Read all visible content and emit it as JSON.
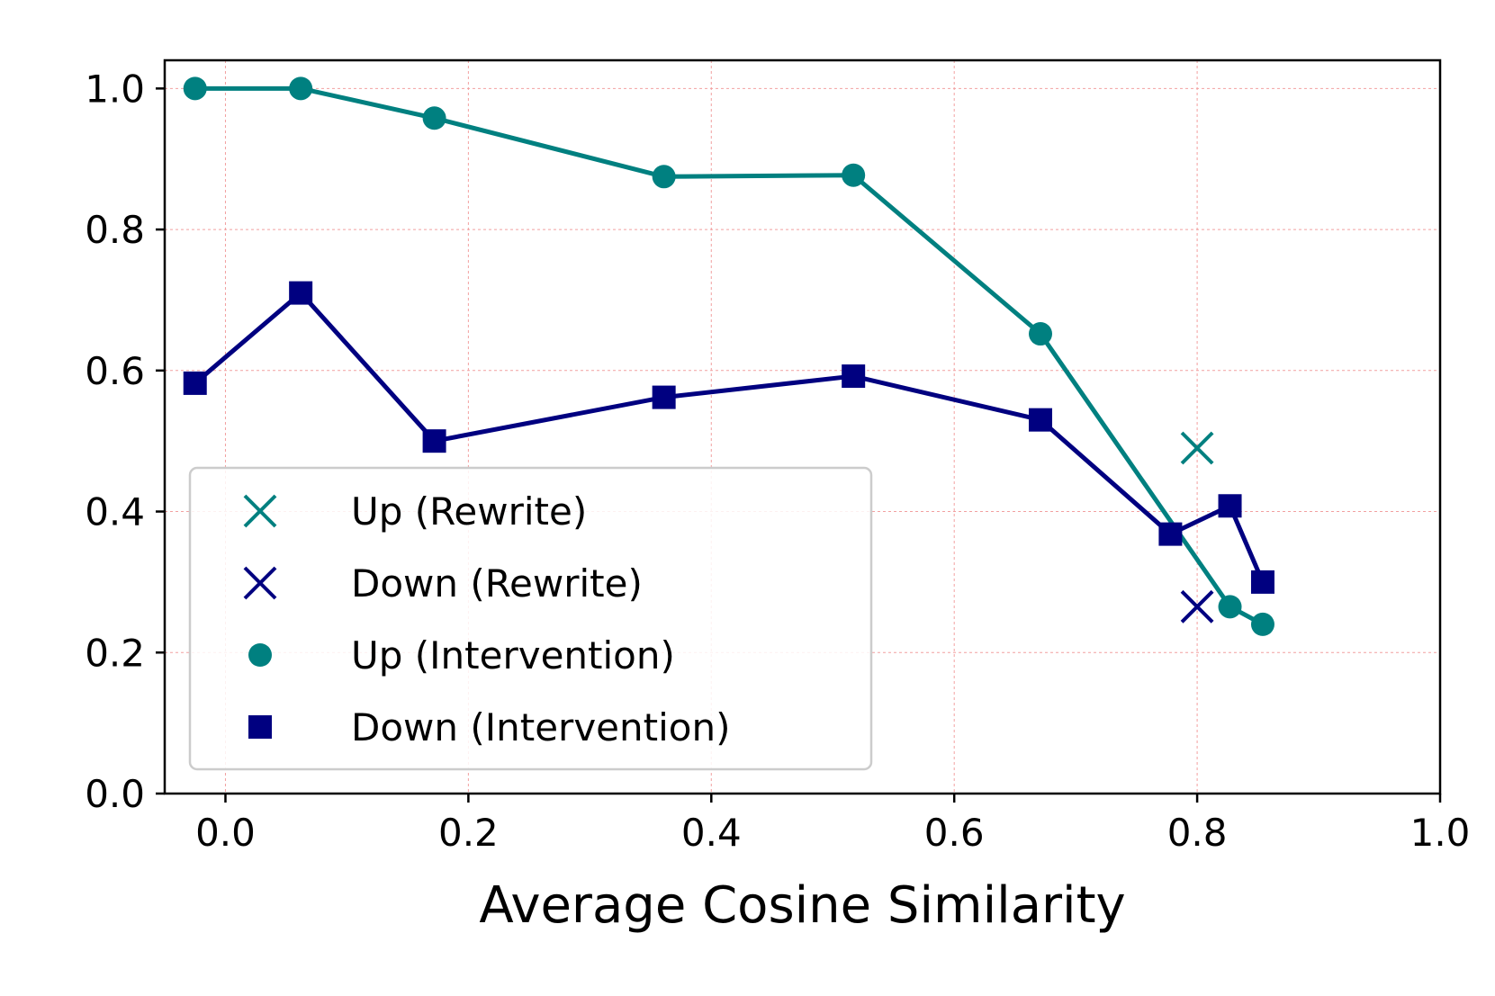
{
  "chart_data": {
    "type": "line",
    "title": "",
    "xlabel": "Average Cosine Similarity",
    "ylabel": "",
    "xlim": [
      -0.05,
      1.0
    ],
    "ylim": [
      0.0,
      1.04
    ],
    "xticks": [
      0.0,
      0.2,
      0.4,
      0.6,
      0.8,
      1.0
    ],
    "xtick_labels": [
      "0.0",
      "0.2",
      "0.4",
      "0.6",
      "0.8",
      "1.0"
    ],
    "yticks": [
      0.0,
      0.2,
      0.4,
      0.6,
      0.8,
      1.0
    ],
    "ytick_labels": [
      "0.0",
      "0.2",
      "0.4",
      "0.6",
      "0.8",
      "1.0"
    ],
    "grid": true,
    "legend_position": "lower-left",
    "series": [
      {
        "name": "Up (Rewrite)",
        "marker": "x",
        "line": false,
        "color": "#008080",
        "x": [
          0.8
        ],
        "y": [
          0.49
        ]
      },
      {
        "name": "Down (Rewrite)",
        "marker": "x",
        "line": false,
        "color": "#000080",
        "x": [
          0.8
        ],
        "y": [
          0.265
        ]
      },
      {
        "name": "Up (Intervention)",
        "marker": "circle",
        "line": true,
        "color": "#008080",
        "x": [
          -0.025,
          0.062,
          0.172,
          0.361,
          0.517,
          0.671,
          0.827,
          0.854
        ],
        "y": [
          1.0,
          1.0,
          0.958,
          0.875,
          0.877,
          0.652,
          0.265,
          0.24
        ]
      },
      {
        "name": "Down (Intervention)",
        "marker": "square",
        "line": true,
        "color": "#000080",
        "x": [
          -0.025,
          0.062,
          0.172,
          0.361,
          0.517,
          0.671,
          0.778,
          0.827,
          0.854
        ],
        "y": [
          0.582,
          0.71,
          0.5,
          0.562,
          0.592,
          0.53,
          0.368,
          0.408,
          0.3
        ]
      }
    ]
  }
}
